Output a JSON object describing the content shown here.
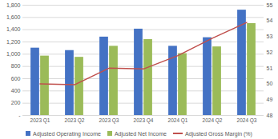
{
  "chart_data": {
    "type": "bar",
    "categories": [
      "2023 Q1",
      "2023 Q2",
      "2023 Q3",
      "2023 Q4",
      "2024 Q1",
      "2024 Q2",
      "2024 Q3"
    ],
    "series": [
      {
        "name": "Adjusted Operating Income",
        "type": "bar",
        "color": "#4472c4",
        "values": [
          1100,
          1060,
          1280,
          1410,
          1130,
          1270,
          1720
        ]
      },
      {
        "name": "Adjusted Net Income",
        "type": "bar",
        "color": "#9bbb59",
        "values": [
          970,
          950,
          1130,
          1240,
          1010,
          1120,
          1500
        ]
      },
      {
        "name": "Adjusted Gross Margin (%)",
        "type": "line",
        "axis": "y2",
        "color": "#c0504d",
        "values": [
          50.0,
          49.95,
          51.0,
          50.95,
          51.8,
          52.9,
          53.9
        ]
      }
    ],
    "ylim": [
      0,
      1800
    ],
    "yticks": [
      {
        "value": 0,
        "label": "-"
      },
      200,
      400,
      600,
      800,
      {
        "value": 1000,
        "label": "1,000"
      },
      {
        "value": 1200,
        "label": "1,200"
      },
      {
        "value": 1400,
        "label": "1,400"
      },
      {
        "value": 1600,
        "label": "1,600"
      },
      {
        "value": 1800,
        "label": "1,800"
      }
    ],
    "y2lim": [
      48,
      55
    ],
    "y2ticks": [
      48,
      49,
      50,
      51,
      52,
      53,
      54,
      55
    ],
    "grid": true,
    "legend": "bottom"
  }
}
